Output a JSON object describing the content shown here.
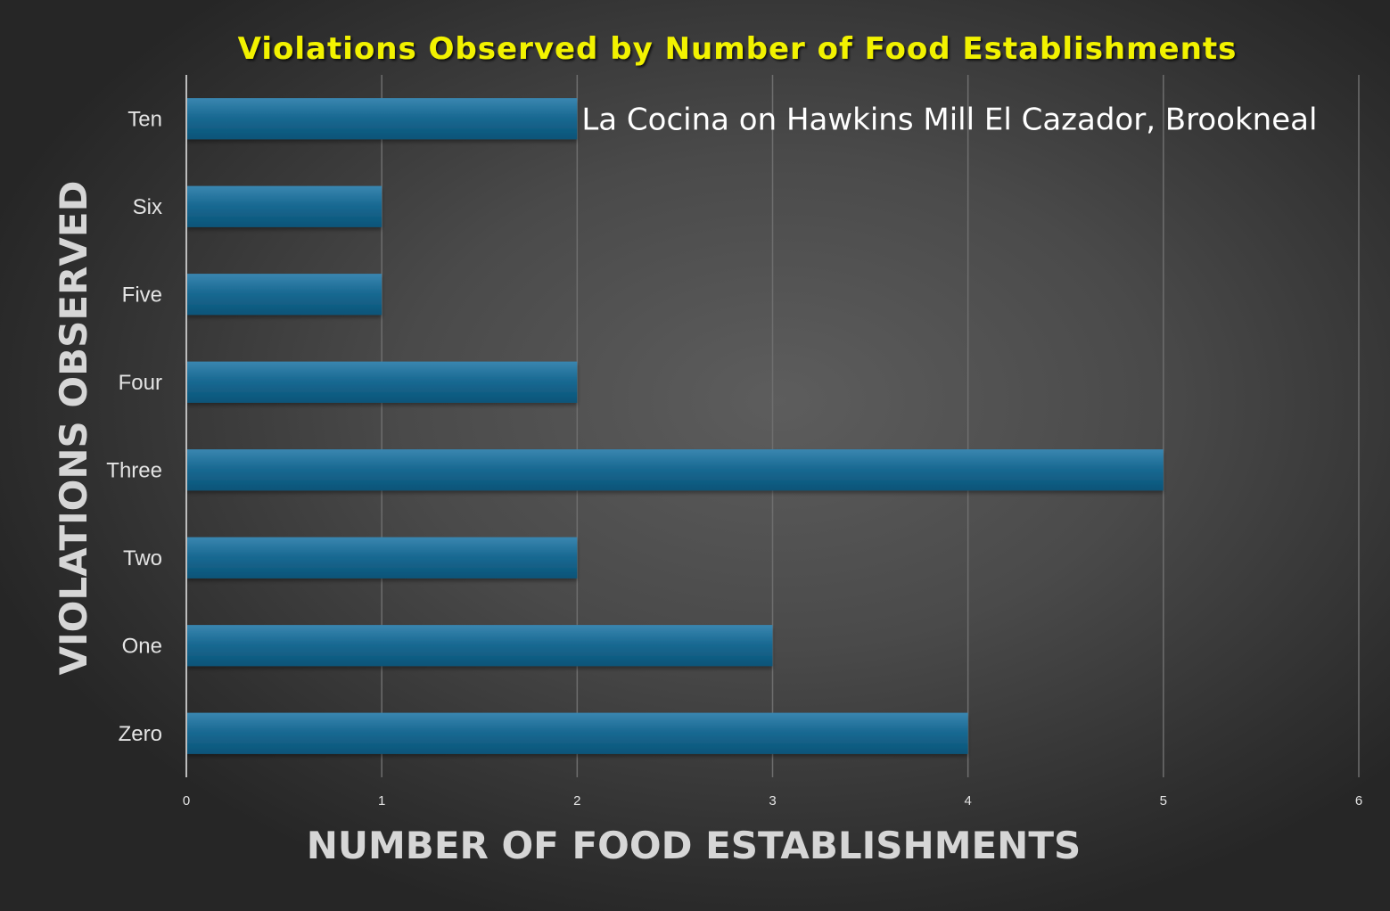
{
  "colors": {
    "title": "#f2f200",
    "bar_top": "#3a86b0",
    "bar_bottom": "#0a5478",
    "gridline": "#6e6e6e",
    "axis_line": "#bdbdbd"
  },
  "chart_data": {
    "type": "bar",
    "orientation": "horizontal",
    "title": "Violations Observed by Number of Food Establishments",
    "xlabel": "NUMBER OF FOOD ESTABLISHMENTS",
    "ylabel": "VIOLATIONS OBSERVED",
    "categories": [
      "Ten",
      "Six",
      "Five",
      "Four",
      "Three",
      "Two",
      "One",
      "Zero"
    ],
    "values": [
      2,
      1,
      1,
      2,
      5,
      2,
      3,
      4
    ],
    "xlim": [
      0,
      6
    ],
    "xticks": [
      "0",
      "1",
      "2",
      "3",
      "4",
      "5",
      "6"
    ],
    "grid": "vertical",
    "legend": "none",
    "annotations": [
      {
        "category": "Ten",
        "text": "La Cocina on Hawkins Mill  El Cazador, Brookneal"
      }
    ]
  }
}
